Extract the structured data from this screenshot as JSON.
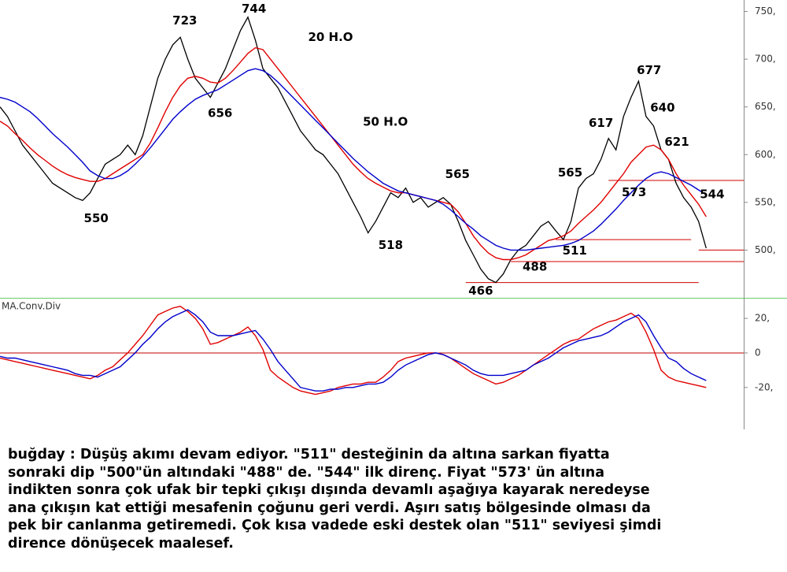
{
  "chart_data": [
    {
      "type": "line",
      "xlim": [
        0,
        99
      ],
      "ylim": [
        450,
        762
      ],
      "yticks": [
        {
          "value": 500,
          "label": "500,"
        },
        {
          "value": 550,
          "label": "550,"
        },
        {
          "value": 600,
          "label": "600,"
        },
        {
          "value": 650,
          "label": "650,"
        },
        {
          "value": 700,
          "label": "700,"
        },
        {
          "value": 750,
          "label": "750,"
        }
      ],
      "series": [
        {
          "color": "#000000",
          "values": [
            650,
            640,
            625,
            610,
            600,
            590,
            580,
            570,
            565,
            560,
            555,
            552,
            560,
            575,
            590,
            595,
            600,
            610,
            600,
            620,
            650,
            680,
            700,
            715,
            723,
            700,
            680,
            670,
            660,
            675,
            690,
            710,
            730,
            744,
            720,
            690,
            680,
            670,
            655,
            640,
            625,
            615,
            605,
            600,
            590,
            580,
            565,
            550,
            535,
            518,
            530,
            545,
            560,
            555,
            565,
            550,
            555,
            545,
            550,
            555,
            548,
            530,
            510,
            495,
            480,
            470,
            466,
            475,
            490,
            500,
            505,
            515,
            525,
            530,
            520,
            511,
            530,
            565,
            575,
            580,
            595,
            617,
            605,
            640,
            660,
            677,
            640,
            630,
            605,
            595,
            570,
            555,
            545,
            530,
            502
          ]
        },
        {
          "color": "#e00000",
          "values": [
            635,
            630,
            622,
            615,
            607,
            600,
            594,
            588,
            583,
            579,
            576,
            574,
            572,
            572,
            575,
            580,
            585,
            590,
            595,
            600,
            612,
            628,
            645,
            660,
            672,
            680,
            682,
            680,
            676,
            675,
            680,
            688,
            697,
            706,
            712,
            710,
            700,
            690,
            680,
            670,
            660,
            650,
            640,
            630,
            620,
            610,
            600,
            590,
            582,
            575,
            570,
            566,
            562,
            560,
            560,
            558,
            556,
            554,
            552,
            550,
            548,
            540,
            528,
            515,
            505,
            497,
            492,
            490,
            490,
            492,
            495,
            500,
            505,
            510,
            512,
            515,
            520,
            528,
            535,
            542,
            550,
            560,
            570,
            580,
            592,
            600,
            608,
            610,
            605,
            595,
            580,
            568,
            558,
            548,
            535
          ]
        },
        {
          "color": "#0000cc",
          "values": [
            660,
            658,
            655,
            650,
            645,
            638,
            630,
            622,
            615,
            608,
            600,
            592,
            583,
            578,
            575,
            575,
            578,
            583,
            590,
            598,
            607,
            617,
            627,
            637,
            645,
            652,
            658,
            662,
            665,
            668,
            673,
            678,
            683,
            688,
            690,
            688,
            683,
            676,
            668,
            660,
            652,
            644,
            636,
            628,
            620,
            612,
            604,
            596,
            589,
            582,
            576,
            570,
            566,
            562,
            560,
            558,
            556,
            554,
            552,
            548,
            542,
            535,
            528,
            522,
            515,
            510,
            505,
            502,
            500,
            500,
            500,
            501,
            502,
            503,
            504,
            505,
            507,
            510,
            515,
            520,
            527,
            535,
            543,
            552,
            560,
            568,
            575,
            580,
            582,
            580,
            576,
            572,
            568,
            563,
            558
          ]
        }
      ],
      "hlines": [
        {
          "value": 573,
          "from": 81,
          "to": 99
        },
        {
          "value": 511,
          "from": 74,
          "to": 92
        },
        {
          "value": 500,
          "from": 93,
          "to": 99
        },
        {
          "value": 488,
          "from": 68,
          "to": 99
        },
        {
          "value": 466,
          "from": 62,
          "to": 93
        }
      ],
      "annotations": [
        {
          "text": "723",
          "x": 24.6,
          "y": 740
        },
        {
          "text": "744",
          "x": 33.8,
          "y": 752.5
        },
        {
          "text": "20 H.O",
          "x": 44,
          "y": 723
        },
        {
          "text": "656",
          "x": 29.3,
          "y": 643
        },
        {
          "text": "50 H.O",
          "x": 51.3,
          "y": 634
        },
        {
          "text": "550",
          "x": 12.8,
          "y": 533
        },
        {
          "text": "518",
          "x": 52,
          "y": 505
        },
        {
          "text": "565",
          "x": 60.9,
          "y": 579
        },
        {
          "text": "466",
          "x": 64,
          "y": 457
        },
        {
          "text": "488",
          "x": 71.2,
          "y": 482
        },
        {
          "text": "511",
          "x": 76.5,
          "y": 499
        },
        {
          "text": "565",
          "x": 75.9,
          "y": 581
        },
        {
          "text": "617",
          "x": 80,
          "y": 633
        },
        {
          "text": "677",
          "x": 86.4,
          "y": 688
        },
        {
          "text": "640",
          "x": 88.2,
          "y": 649
        },
        {
          "text": "621",
          "x": 90.1,
          "y": 613
        },
        {
          "text": "573",
          "x": 84.4,
          "y": 560
        },
        {
          "text": "544",
          "x": 94.8,
          "y": 558
        }
      ]
    },
    {
      "type": "line",
      "title": "MA.Conv.Div",
      "xlim": [
        0,
        99
      ],
      "ylim": [
        -42,
        31
      ],
      "yticks": [
        {
          "value": -20,
          "label": "-20,"
        },
        0,
        {
          "value": 20,
          "label": "20,"
        }
      ],
      "zero_line": true,
      "series": [
        {
          "color": "#e00000",
          "values": [
            -3,
            -4,
            -5,
            -6,
            -7,
            -8,
            -9,
            -10,
            -11,
            -12,
            -13,
            -14,
            -15,
            -13,
            -10,
            -8,
            -4,
            0,
            5,
            10,
            16,
            22,
            24,
            26,
            27,
            24,
            20,
            14,
            5,
            6,
            8,
            10,
            12,
            15,
            10,
            2,
            -10,
            -14,
            -17,
            -20,
            -22,
            -23,
            -24,
            -23,
            -22,
            -20,
            -19,
            -18,
            -18,
            -17,
            -17,
            -14,
            -10,
            -5,
            -3,
            -2,
            -1,
            0,
            0,
            -1,
            -3,
            -6,
            -9,
            -12,
            -14,
            -16,
            -18,
            -17,
            -15,
            -13,
            -10,
            -7,
            -4,
            -1,
            2,
            5,
            7,
            8,
            11,
            14,
            16,
            18,
            19,
            21,
            23,
            20,
            12,
            2,
            -10,
            -14,
            -16,
            -17,
            -18,
            -19,
            -20
          ]
        },
        {
          "color": "#0000cc",
          "values": [
            -2,
            -3,
            -3,
            -4,
            -5,
            -6,
            -7,
            -8,
            -9,
            -10,
            -12,
            -13,
            -13,
            -14,
            -12,
            -10,
            -8,
            -4,
            0,
            5,
            9,
            14,
            18,
            21,
            23,
            25,
            22,
            18,
            12,
            10,
            10,
            10,
            11,
            12,
            13,
            8,
            2,
            -5,
            -10,
            -15,
            -20,
            -21,
            -22,
            -22,
            -21,
            -21,
            -20,
            -20,
            -19,
            -18,
            -18,
            -17,
            -14,
            -10,
            -7,
            -5,
            -3,
            -1,
            0,
            -1,
            -3,
            -5,
            -7,
            -10,
            -12,
            -13,
            -13,
            -13,
            -12,
            -11,
            -10,
            -7,
            -5,
            -3,
            0,
            3,
            5,
            7,
            8,
            9,
            10,
            12,
            15,
            18,
            20,
            22,
            18,
            10,
            3,
            -3,
            -5,
            -9,
            -12,
            -14,
            -16
          ]
        }
      ]
    }
  ],
  "text": {
    "lines": [
      "buğday : Düşüş akımı devam ediyor. \"511\" desteğinin da altına sarkan fiyatta",
      "sonraki dip \"500\"ün altındaki \"488\" de. \"544\" ilk direnç. Fiyat \"573' ün altına",
      "indikten sonra çok ufak bir tepki çıkışı dışında devamlı aşağıya kayarak neredeyse",
      "ana çıkışın kat ettiği mesafenin çoğunu geri verdi. Aşırı satış bölgesinde olması da",
      "pek bir canlanma getiremedi. Çok kısa vadede eski destek olan \"511\" seviyesi şimdi",
      "dirence dönüşecek maalesef."
    ]
  }
}
